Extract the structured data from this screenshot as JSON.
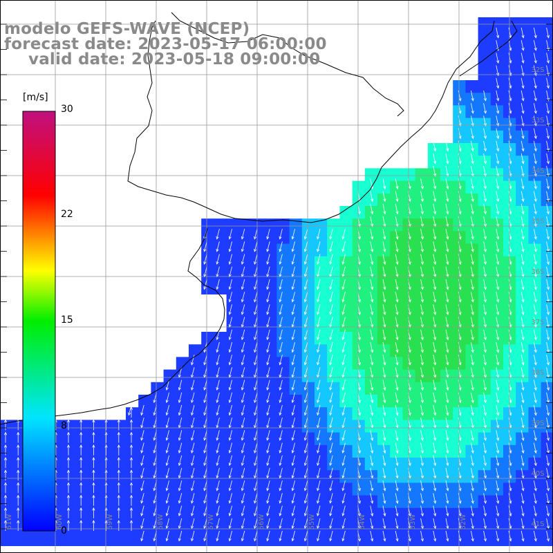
{
  "title": {
    "line1": "modelo GEFS-WAVE (NCEP)",
    "line2": "forecast date: 2023-05-17 06:00:00",
    "line3": "valid date: 2023-05-18 09:00:00"
  },
  "colorbar": {
    "unit": "[m/s]",
    "ticks": [
      {
        "label": "30",
        "value": 30
      },
      {
        "label": "22",
        "value": 22
      },
      {
        "label": "15",
        "value": 15
      },
      {
        "label": "8",
        "value": 8
      },
      {
        "label": "0",
        "value": 0
      }
    ],
    "range": [
      0,
      30
    ],
    "colors": [
      "#0000ff",
      "#00e5ff",
      "#00ee00",
      "#ffff00",
      "#ff0000",
      "#c01080"
    ]
  },
  "map": {
    "lat_labels": [
      "32S",
      "33S",
      "34S",
      "35S",
      "36S",
      "37S",
      "38S",
      "39S",
      "40S",
      "41S"
    ],
    "lon_labels": [
      "61W",
      "60W",
      "59W",
      "58W",
      "57W",
      "56W",
      "55W",
      "54W",
      "53W",
      "52W"
    ],
    "sea_colors": [
      "#1e3cff",
      "#1478ff",
      "#14c8ff",
      "#18ffd2",
      "#20f080",
      "#28e050"
    ],
    "land_color": "#ffffff",
    "grid_color": "#999999",
    "arrow_color": "#ffffff"
  }
}
